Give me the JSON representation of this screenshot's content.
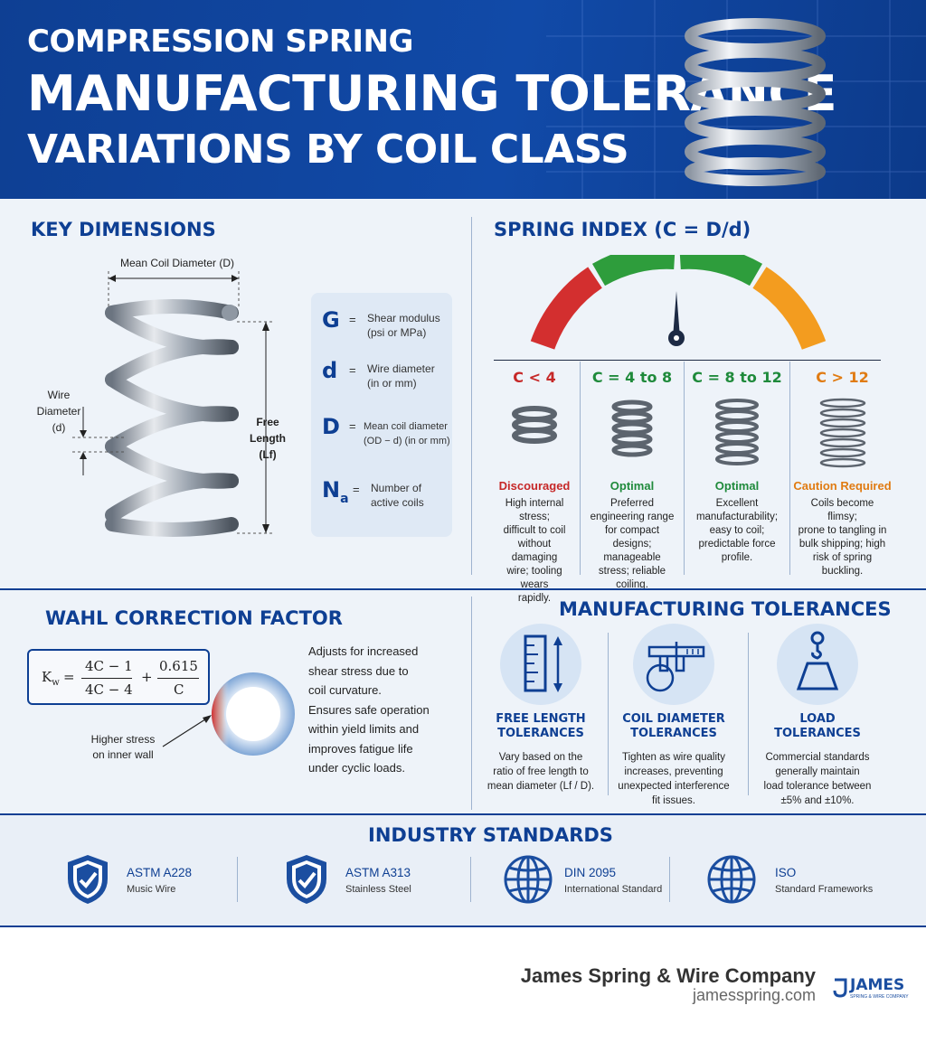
{
  "header": {
    "line1": "COMPRESSION SPRING",
    "line2": "MANUFACTURING TOLERANCE",
    "line3": "VARIATIONS BY COIL CLASS"
  },
  "key_dimensions": {
    "title": "KEY DIMENSIONS",
    "mean_coil_label": "Mean Coil Diameter (D)",
    "wire_label": [
      "Wire",
      "Diameter",
      "(d)"
    ],
    "free_length_label": [
      "Free",
      "Length",
      "(Lf)"
    ],
    "legend": [
      {
        "symbol": "G",
        "eq": "=",
        "desc": [
          "Shear modulus",
          "(psi or MPa)"
        ]
      },
      {
        "symbol": "d",
        "eq": "=",
        "desc": [
          "Wire diameter",
          "(in or mm)"
        ]
      },
      {
        "symbol": "D",
        "eq": "=",
        "desc": [
          "Mean coil diameter",
          "(OD − d) (in or mm)"
        ]
      },
      {
        "symbol": "N",
        "subscript": "a",
        "eq": "=",
        "desc": [
          "Number of",
          "active coils"
        ]
      }
    ]
  },
  "spring_index": {
    "title": "SPRING INDEX (C = D/d)",
    "classes": [
      {
        "range": "C < 4",
        "status": "Discouraged",
        "color": "#c62828",
        "desc": [
          "High internal stress;",
          "difficult to coil",
          "without damaging",
          "wire; tooling wears",
          "rapidly."
        ]
      },
      {
        "range": "C = 4 to 8",
        "status": "Optimal",
        "color": "#1f8a3b",
        "desc": [
          "Preferred",
          "engineering range",
          "for compact",
          "designs; manageable",
          "stress; reliable",
          "coiling."
        ]
      },
      {
        "range": "C = 8 to 12",
        "status": "Optimal",
        "color": "#1f8a3b",
        "desc": [
          "Excellent",
          "manufacturability;",
          "easy to coil;",
          "predictable force",
          "profile."
        ]
      },
      {
        "range": "C > 12",
        "status": "Caution Required",
        "color": "#e07b12",
        "desc": [
          "Coils become flimsy;",
          "prone to tangling in",
          "bulk shipping; high",
          "risk of spring",
          "buckling."
        ]
      }
    ],
    "gauge_colors": [
      "#d32f2f",
      "#2e9d3c",
      "#2e9d3c",
      "#f39c1f"
    ]
  },
  "wahl": {
    "title": "WAHL CORRECTION  FACTOR",
    "k": "K",
    "k_sub": "w",
    "eq": "=",
    "num1": "4C − 1",
    "den1": "4C − 4",
    "plus": "+",
    "num2": "0.615",
    "den2": "C",
    "stress_label": [
      "Higher stress",
      "on inner wall"
    ],
    "desc": [
      "Adjusts for increased",
      "shear stress due to",
      "coil curvature.",
      "Ensures safe operation",
      "within yield limits and",
      "improves fatigue life",
      "under cyclic loads."
    ]
  },
  "tolerances": {
    "title": "MANUFACTURING TOLERANCES",
    "items": [
      {
        "title": [
          "FREE LENGTH",
          "TOLERANCES"
        ],
        "icon": "ruler-icon",
        "desc": [
          "Vary based on the",
          "ratio of free length to",
          "mean diameter (Lf / D)."
        ]
      },
      {
        "title": [
          "COIL DIAMETER",
          "TOLERANCES"
        ],
        "icon": "caliper-icon",
        "desc": [
          "Tighten as wire quality",
          "increases, preventing",
          "unexpected interference",
          "fit issues."
        ]
      },
      {
        "title": [
          "LOAD",
          "TOLERANCES"
        ],
        "icon": "weight-hook-icon",
        "desc": [
          "Commercial standards",
          "generally maintain",
          "load tolerance between",
          "±5% and ±10%."
        ]
      }
    ]
  },
  "standards": {
    "title": "INDUSTRY STANDARDS",
    "items": [
      {
        "name": "ASTM A228",
        "sub": "Music Wire",
        "icon": "shield-check-icon"
      },
      {
        "name": "ASTM A313",
        "sub": "Stainless Steel",
        "icon": "shield-check-icon"
      },
      {
        "name": "DIN 2095",
        "sub": "International Standard",
        "icon": "globe-icon"
      },
      {
        "name": "ISO",
        "sub": "Standard Frameworks",
        "icon": "globe-icon"
      }
    ]
  },
  "footer": {
    "company": "James Spring & Wire Company",
    "url": "jamesspring.com",
    "logo": "JAMES",
    "logo_sub": "SPRING & WIRE COMPANY"
  },
  "colors": {
    "brand_blue": "#0e3f93",
    "background": "#eef3f9"
  }
}
